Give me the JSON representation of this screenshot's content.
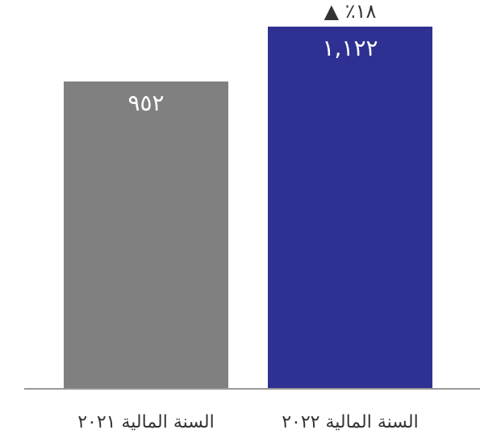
{
  "chart_data": {
    "type": "bar",
    "categories": [
      "السنة المالية ٢٠٢١",
      "السنة المالية ٢٠٢٢"
    ],
    "values": [
      952,
      1122
    ],
    "value_labels": [
      "٩٥٢",
      "١,١٢٢"
    ],
    "bar_colors": [
      "#808080",
      "#2e3192"
    ],
    "annotation": {
      "text": "٪١٨",
      "arrow": "▲"
    },
    "baseline_color": "#999999",
    "ylim": [
      0,
      1122
    ],
    "grid": false,
    "legend": "none"
  }
}
